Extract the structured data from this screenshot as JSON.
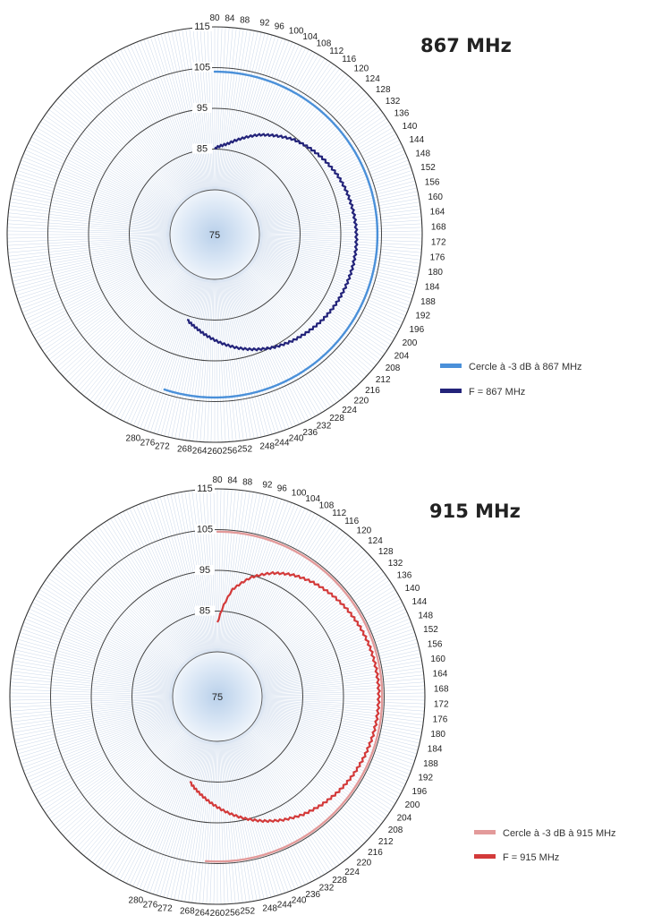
{
  "chart_data": [
    {
      "type": "polar-line",
      "title": "867 MHz",
      "angular_axis": {
        "unit": "deg",
        "start": 80,
        "end": 280,
        "major_step": 4,
        "minor_step": 1,
        "tick_labels": [
          "80",
          "84",
          "88",
          "92",
          "96",
          "100",
          "104",
          "108",
          "112",
          "116",
          "120",
          "124",
          "128",
          "132",
          "136",
          "140",
          "144",
          "148",
          "152",
          "156",
          "160",
          "164",
          "168",
          "172",
          "176",
          "180",
          "184",
          "188",
          "192",
          "196",
          "200",
          "204",
          "208",
          "212",
          "216",
          "220",
          "224",
          "228",
          "232",
          "236",
          "240",
          "244",
          "248",
          "252",
          "256",
          "260",
          "264",
          "268",
          "272",
          "276",
          "280"
        ]
      },
      "radial_axis": {
        "range": [
          75,
          115
        ],
        "rings": [
          85,
          95,
          105,
          115
        ],
        "ring_labels": [
          "75",
          "85",
          "95",
          "105",
          "115"
        ]
      },
      "grid": true,
      "legend_position": "right",
      "series": [
        {
          "name": "Cercle à -3 dB à 867 MHz",
          "color": "#4a90d9",
          "angles": [
            80,
            278
          ],
          "values": [
            104,
            104
          ],
          "style": "arc"
        },
        {
          "name": "F = 867 MHz",
          "color": "#23237a",
          "angles": [
            80,
            88,
            96,
            104,
            112,
            120,
            128,
            136,
            144,
            152,
            160,
            168,
            176,
            184,
            192,
            200,
            208,
            216,
            224,
            232,
            240,
            248,
            256,
            264,
            272,
            278
          ],
          "values": [
            85.2,
            86.5,
            88.6,
            90.8,
            92.6,
            94.4,
            95.6,
            96.6,
            97.5,
            98.1,
            98.5,
            98.8,
            98.9,
            98.8,
            98.6,
            98.3,
            97.8,
            97.1,
            96.3,
            95.3,
            94.0,
            92.5,
            90.8,
            89.0,
            87.2,
            86.0
          ]
        }
      ]
    },
    {
      "type": "polar-line",
      "title": "915 MHz",
      "angular_axis": {
        "unit": "deg",
        "start": 80,
        "end": 280,
        "major_step": 4,
        "minor_step": 1,
        "tick_labels": [
          "80",
          "84",
          "88",
          "92",
          "96",
          "100",
          "104",
          "108",
          "112",
          "116",
          "120",
          "124",
          "128",
          "132",
          "136",
          "140",
          "144",
          "148",
          "152",
          "156",
          "160",
          "164",
          "168",
          "172",
          "176",
          "180",
          "184",
          "188",
          "192",
          "196",
          "200",
          "204",
          "208",
          "212",
          "216",
          "220",
          "224",
          "228",
          "232",
          "236",
          "240",
          "244",
          "248",
          "252",
          "256",
          "260",
          "264",
          "268",
          "272",
          "276",
          "280"
        ]
      },
      "radial_axis": {
        "range": [
          75,
          115
        ],
        "rings": [
          85,
          95,
          105,
          115
        ],
        "ring_labels": [
          "75",
          "85",
          "95",
          "105",
          "115"
        ]
      },
      "grid": true,
      "legend_position": "right",
      "series": [
        {
          "name": "Cercle à -3 dB à 915 MHz",
          "color": "#e39a9a",
          "angles": [
            80,
            264
          ],
          "values": [
            104.5,
            104.5
          ],
          "style": "arc"
        },
        {
          "name": "F = 915 MHz",
          "color": "#d33a3a",
          "angles": [
            80,
            84,
            88,
            96,
            104,
            112,
            120,
            128,
            136,
            144,
            152,
            160,
            168,
            176,
            184,
            192,
            200,
            208,
            216,
            224,
            232,
            240,
            248,
            256,
            264,
            272,
            278
          ],
          "values": [
            82,
            86.5,
            90.5,
            94.5,
            97.2,
            99.2,
            100.6,
            101.6,
            102.4,
            103.0,
            103.4,
            103.6,
            103.7,
            103.6,
            103.4,
            103.0,
            102.5,
            101.8,
            100.9,
            99.8,
            98.3,
            96.5,
            94.5,
            92.3,
            90.0,
            87.7,
            86.0
          ]
        }
      ]
    }
  ]
}
